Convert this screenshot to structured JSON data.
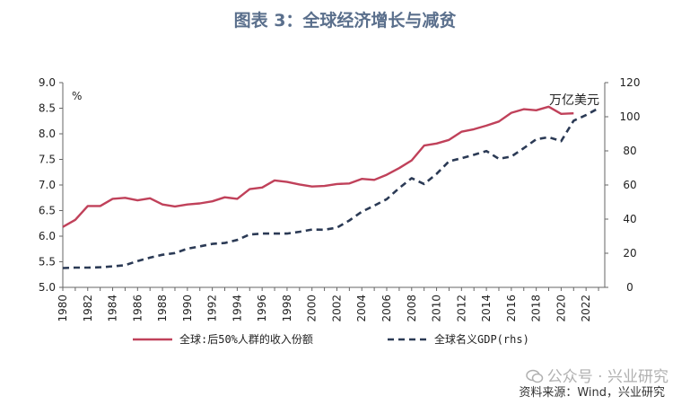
{
  "title": "图表 3：全球经济增长与减贫",
  "source": "资料来源：Wind，兴业研究",
  "watermark": "公众号 · 兴业研究",
  "chart_data": {
    "type": "line",
    "left_axis": {
      "unit": "%",
      "ylim": [
        5.0,
        9.0
      ],
      "ticks": [
        "5.0",
        "5.5",
        "6.0",
        "6.5",
        "7.0",
        "7.5",
        "8.0",
        "8.5",
        "9.0"
      ]
    },
    "right_axis": {
      "unit": "万亿美元",
      "ylim": [
        0,
        120
      ],
      "ticks": [
        "0",
        "20",
        "40",
        "60",
        "80",
        "100",
        "120"
      ]
    },
    "x_ticks": [
      "1980",
      "1982",
      "1984",
      "1986",
      "1988",
      "1990",
      "1992",
      "1994",
      "1996",
      "1998",
      "2000",
      "2002",
      "2004",
      "2006",
      "2008",
      "2010",
      "2012",
      "2014",
      "2016",
      "2018",
      "2020",
      "2022"
    ],
    "legend_position": "bottom",
    "series": [
      {
        "name": "全球:后50%人群的收入份额",
        "axis": "left",
        "color": "#c0415a",
        "style": "solid",
        "x": [
          1980,
          1981,
          1982,
          1983,
          1984,
          1985,
          1986,
          1987,
          1988,
          1989,
          1990,
          1991,
          1992,
          1993,
          1994,
          1995,
          1996,
          1997,
          1998,
          1999,
          2000,
          2001,
          2002,
          2003,
          2004,
          2005,
          2006,
          2007,
          2008,
          2009,
          2010,
          2011,
          2012,
          2013,
          2014,
          2015,
          2016,
          2017,
          2018,
          2019,
          2020,
          2021
        ],
        "values": [
          6.18,
          6.32,
          6.59,
          6.59,
          6.73,
          6.75,
          6.7,
          6.74,
          6.62,
          6.58,
          6.62,
          6.64,
          6.68,
          6.76,
          6.73,
          6.92,
          6.95,
          7.09,
          7.06,
          7.01,
          6.97,
          6.98,
          7.02,
          7.03,
          7.12,
          7.1,
          7.2,
          7.33,
          7.48,
          7.77,
          7.81,
          7.88,
          8.04,
          8.09,
          8.16,
          8.24,
          8.41,
          8.48,
          8.46,
          8.53,
          8.39,
          8.4
        ]
      },
      {
        "name": "全球名义GDP(rhs)",
        "axis": "right",
        "color": "#2b3a55",
        "style": "dashed",
        "x": [
          1980,
          1981,
          1982,
          1983,
          1984,
          1985,
          1986,
          1987,
          1988,
          1989,
          1990,
          1991,
          1992,
          1993,
          1994,
          1995,
          1996,
          1997,
          1998,
          1999,
          2000,
          2001,
          2002,
          2003,
          2004,
          2005,
          2006,
          2007,
          2008,
          2009,
          2010,
          2011,
          2012,
          2013,
          2014,
          2015,
          2016,
          2017,
          2018,
          2019,
          2020,
          2021,
          2022,
          2023
        ],
        "values": [
          11.3,
          11.6,
          11.6,
          11.8,
          12.3,
          13.0,
          15.4,
          17.4,
          19.1,
          20.1,
          22.7,
          24.0,
          25.5,
          26.0,
          27.8,
          31.0,
          31.5,
          31.5,
          31.5,
          32.6,
          33.9,
          33.8,
          35.0,
          39.2,
          44.3,
          47.9,
          51.7,
          58.2,
          64.0,
          60.6,
          66.5,
          73.9,
          75.7,
          77.7,
          79.9,
          75.3,
          76.7,
          81.6,
          86.8,
          88.0,
          85.7,
          97.7,
          101.0,
          105.0
        ]
      }
    ]
  }
}
